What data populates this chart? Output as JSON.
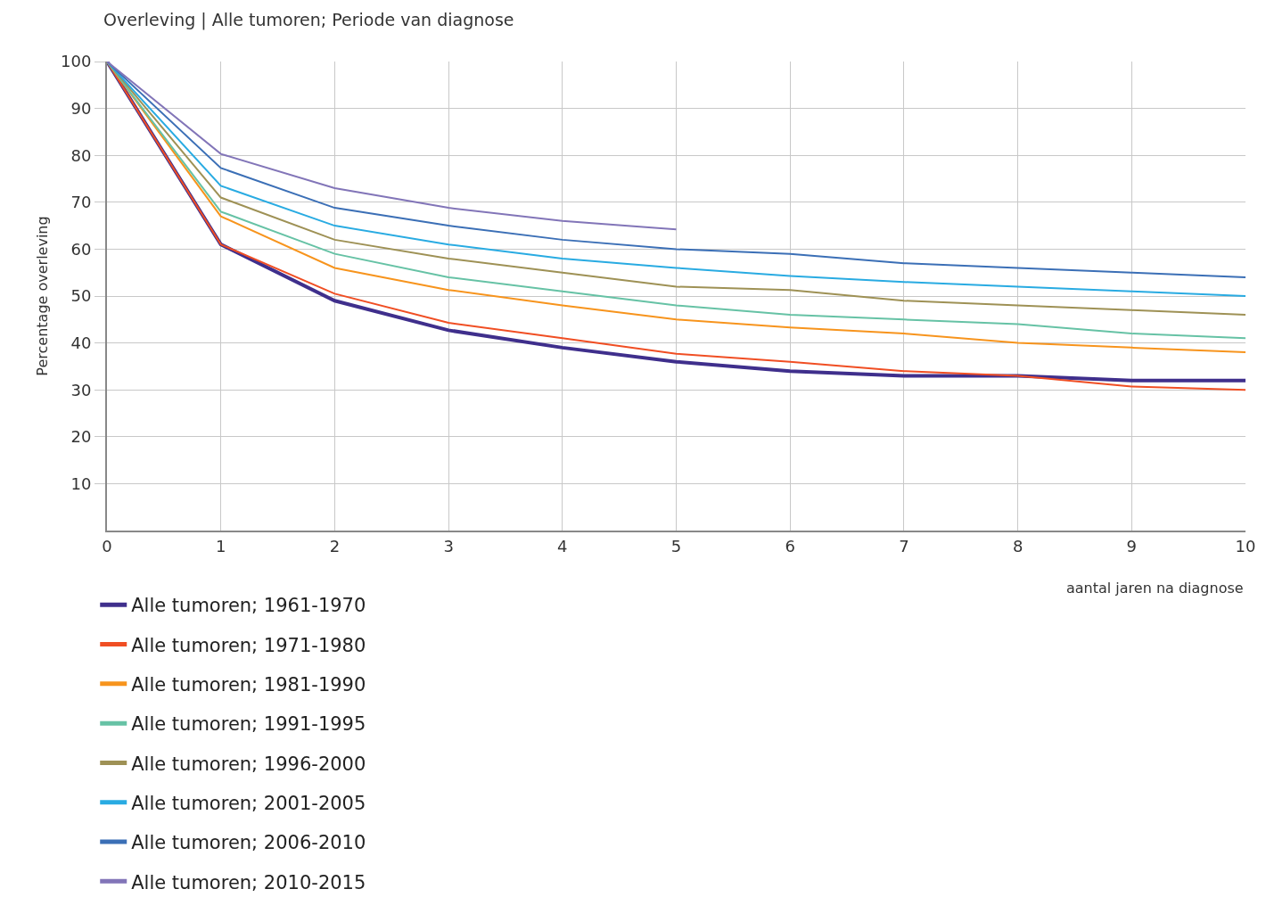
{
  "chart_data": {
    "type": "line",
    "title": "Overleving | Alle tumoren; Periode van diagnose",
    "xlabel": "aantal jaren na diagnose",
    "ylabel": "Percentage overleving",
    "x": [
      0,
      1,
      2,
      3,
      4,
      5,
      6,
      7,
      8,
      9,
      10
    ],
    "series": [
      {
        "name": "Alle tumoren; 1961-1970",
        "color": "#3f2f8c",
        "values": [
          100,
          61,
          49,
          42.7,
          39,
          36,
          34,
          33,
          33,
          32,
          32
        ]
      },
      {
        "name": "Alle tumoren; 1971-1980",
        "color": "#f04e23",
        "values": [
          100,
          61,
          50.5,
          44.3,
          41,
          37.7,
          36,
          34,
          33,
          30.7,
          30
        ]
      },
      {
        "name": "Alle tumoren; 1981-1990",
        "color": "#f7941d",
        "values": [
          100,
          67,
          56,
          51.3,
          48,
          45,
          43.3,
          42,
          40,
          39,
          38
        ]
      },
      {
        "name": "Alle tumoren; 1991-1995",
        "color": "#66c2a5",
        "values": [
          100,
          68,
          59,
          54,
          51,
          48,
          46,
          45,
          44,
          42,
          41
        ]
      },
      {
        "name": "Alle tumoren; 1996-2000",
        "color": "#9e9155",
        "values": [
          100,
          71,
          62,
          58,
          55,
          52,
          51.3,
          49,
          48,
          47,
          46
        ]
      },
      {
        "name": "Alle tumoren; 2001-2005",
        "color": "#29abe2",
        "values": [
          100,
          73.5,
          65,
          61,
          58,
          56,
          54.3,
          53,
          52,
          51,
          50
        ]
      },
      {
        "name": "Alle tumoren; 2006-2010",
        "color": "#3b6fb6",
        "values": [
          100,
          77.3,
          68.8,
          65,
          62,
          60,
          59,
          57,
          56,
          55,
          54
        ]
      },
      {
        "name": "Alle tumoren; 2010-2015",
        "color": "#8275b8",
        "values": [
          100,
          80.3,
          73,
          68.8,
          66,
          64.2,
          null,
          null,
          null,
          null,
          null
        ]
      }
    ],
    "xlim": [
      0,
      10
    ],
    "xticks": [
      0,
      1,
      2,
      3,
      4,
      5,
      6,
      7,
      8,
      9,
      10
    ],
    "ylim": [
      0,
      100
    ],
    "yticks": [
      10,
      20,
      30,
      40,
      50,
      60,
      70,
      80,
      90,
      100
    ],
    "grid": true,
    "legend": "bottom left",
    "marker": "none",
    "line_style": "solid"
  }
}
